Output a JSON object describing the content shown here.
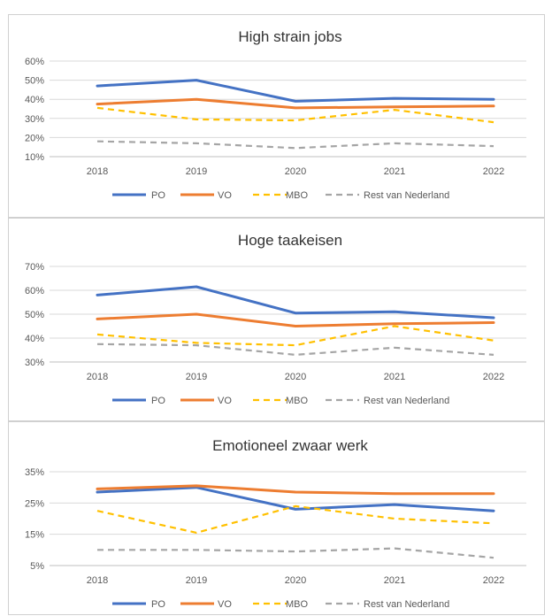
{
  "chart_data": [
    {
      "type": "line",
      "title": "High strain jobs",
      "categories": [
        "2018",
        "2019",
        "2020",
        "2021",
        "2022"
      ],
      "yticks": [
        "10%",
        "20%",
        "30%",
        "40%",
        "50%",
        "60%"
      ],
      "ylim": [
        10,
        60
      ],
      "grid": true,
      "legend_position": "bottom",
      "series": [
        {
          "name": "PO",
          "color": "#4472C4",
          "dashed": false,
          "values": [
            47,
            50,
            39,
            40.5,
            40
          ]
        },
        {
          "name": "VO",
          "color": "#ED7D31",
          "dashed": false,
          "values": [
            37.5,
            40,
            35.5,
            36,
            36.5
          ]
        },
        {
          "name": "MBO",
          "color": "#FFC000",
          "dashed": true,
          "values": [
            35.5,
            29.5,
            29,
            34.5,
            28
          ]
        },
        {
          "name": "Rest van Nederland",
          "color": "#A5A5A5",
          "dashed": true,
          "values": [
            18,
            17,
            14.5,
            17,
            15.5
          ]
        }
      ]
    },
    {
      "type": "line",
      "title": "Hoge taakeisen",
      "categories": [
        "2018",
        "2019",
        "2020",
        "2021",
        "2022"
      ],
      "yticks": [
        "30%",
        "40%",
        "50%",
        "60%",
        "70%"
      ],
      "ylim": [
        30,
        70
      ],
      "grid": true,
      "legend_position": "bottom",
      "series": [
        {
          "name": "PO",
          "color": "#4472C4",
          "dashed": false,
          "values": [
            58,
            61.5,
            50.5,
            51,
            48.5
          ]
        },
        {
          "name": "VO",
          "color": "#ED7D31",
          "dashed": false,
          "values": [
            48,
            50,
            45,
            46,
            46.5
          ]
        },
        {
          "name": "MBO",
          "color": "#FFC000",
          "dashed": true,
          "values": [
            41.5,
            38,
            37,
            45,
            39
          ]
        },
        {
          "name": "Rest van Nederland",
          "color": "#A5A5A5",
          "dashed": true,
          "values": [
            37.5,
            37,
            33,
            36,
            33
          ]
        }
      ]
    },
    {
      "type": "line",
      "title": "Emotioneel zwaar werk",
      "categories": [
        "2018",
        "2019",
        "2020",
        "2021",
        "2022"
      ],
      "yticks": [
        "5%",
        "15%",
        "25%",
        "35%"
      ],
      "ylim": [
        5,
        35
      ],
      "grid": true,
      "legend_position": "bottom",
      "series": [
        {
          "name": "PO",
          "color": "#4472C4",
          "dashed": false,
          "values": [
            28.5,
            30,
            23,
            24.5,
            22.5
          ]
        },
        {
          "name": "VO",
          "color": "#ED7D31",
          "dashed": false,
          "values": [
            29.5,
            30.5,
            28.5,
            28,
            28
          ]
        },
        {
          "name": "MBO",
          "color": "#FFC000",
          "dashed": true,
          "values": [
            22.5,
            15.5,
            24,
            20,
            18.5
          ]
        },
        {
          "name": "Rest van Nederland",
          "color": "#A5A5A5",
          "dashed": true,
          "values": [
            10,
            10,
            9.5,
            10.5,
            7.5
          ]
        }
      ]
    }
  ]
}
